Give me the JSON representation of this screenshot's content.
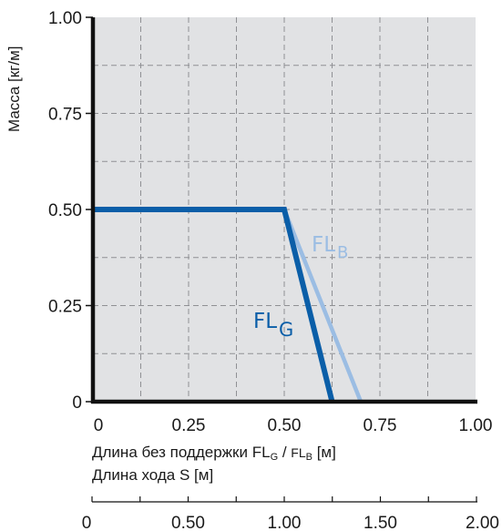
{
  "chart_data": {
    "type": "line",
    "ylabel": "Масса  [кг/м]",
    "xlabel_main": "Длина без поддержки",
    "xlabel_parts": {
      "fl1": "FL",
      "sub1": "G",
      "sep": " / ",
      "fl2": "FL",
      "sub2": "B",
      "unit": " [м]"
    },
    "xlabel_secondary": "Длина хода S   [м]",
    "xlim": [
      0,
      1.0
    ],
    "ylim": [
      0,
      1.0
    ],
    "x_ticks": [
      "0",
      "0.25",
      "0.50",
      "0.75",
      "1.00"
    ],
    "y_ticks": [
      "0",
      "0.25",
      "0.50",
      "0.75",
      "1.00"
    ],
    "secondary_x": {
      "xlim": [
        0,
        2.0
      ],
      "ticks": [
        "0",
        "0.50",
        "1.00",
        "1.50",
        "2.00"
      ]
    },
    "grid": true,
    "series": [
      {
        "name": "FL G",
        "label_main": "FL",
        "label_sub": "G",
        "color": "#0a5ea8",
        "x": [
          0,
          0.5,
          0.625
        ],
        "y": [
          0.5,
          0.5,
          0
        ]
      },
      {
        "name": "FL B",
        "label_main": "FL",
        "label_sub": "B",
        "color": "#9bbde3",
        "x": [
          0.5,
          0.7
        ],
        "y": [
          0.5,
          0
        ]
      }
    ]
  }
}
